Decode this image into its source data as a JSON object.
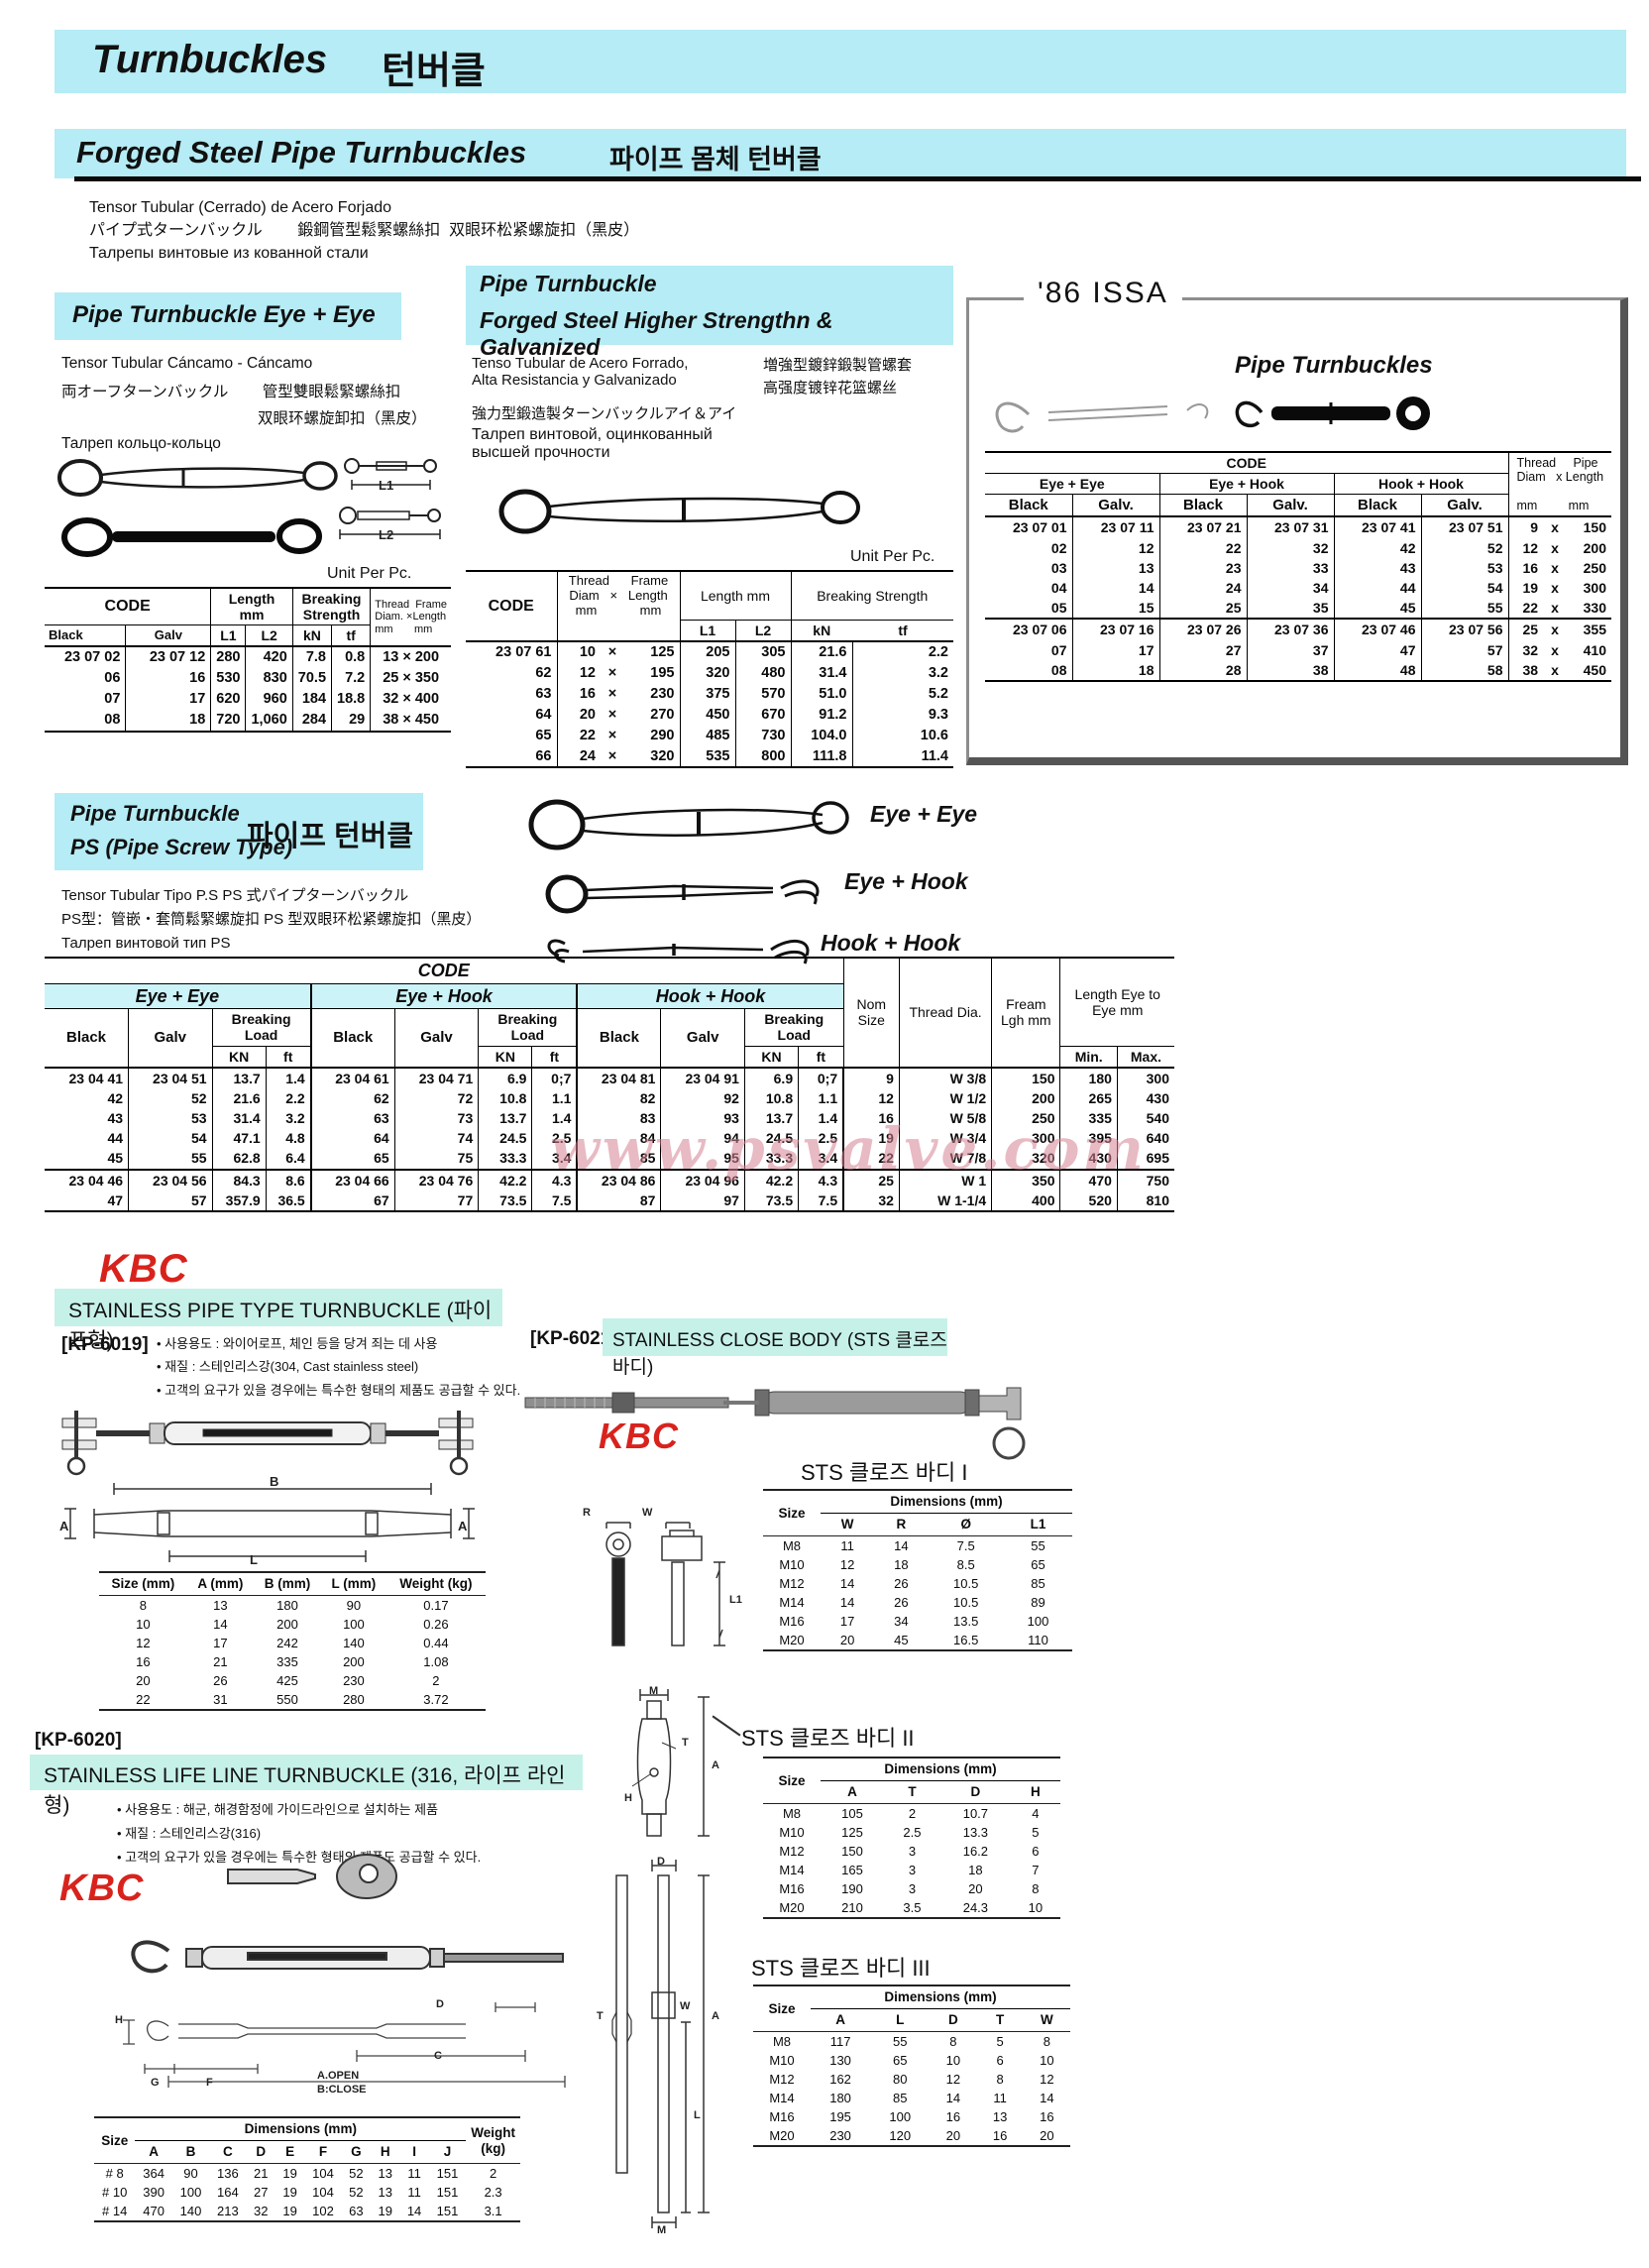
{
  "page": {
    "title_en": "Turnbuckles",
    "title_kr": "턴버클",
    "section_en": "Forged Steel Pipe Turnbuckles",
    "section_kr": "파이프 몸체 턴버클",
    "intro1": "Tensor Tubular (Cerrado) de Acero Forjado",
    "intro2": "パイプ式ターンバックル        鍛鋼管型鬆緊螺絲扣  双眼环松紧螺旋扣（黑皮）",
    "intro3": "Талрепы винтовые из кованной стали",
    "watermark": "www.psvalve.com",
    "accent_cyan": "#b5ecf5",
    "kbc_red": "#d8231d"
  },
  "labels": {
    "code": "CODE",
    "black": "Black",
    "galv": "Galv",
    "galv_dot": "Galv.",
    "l1": "L1",
    "l2": "L2",
    "kn": "kN",
    "kn_u": "KN",
    "tf": "tf",
    "ft": "ft",
    "unit_per_pc": "Unit Per Pc.",
    "length_mm": "Length mm",
    "breaking_strength": "Breaking Strength",
    "breaking_load": "Breaking Load",
    "eye_eye": "Eye + Eye",
    "eye_hook": "Eye + Hook",
    "hook_hook": "Hook + Hook",
    "size": "Size",
    "dimensions_mm": "Dimensions (mm)",
    "weight_kg": "Weight (kg)",
    "nom_size": "Nom Size",
    "thread_dia": "Thread Dia.",
    "fream_lgh": "Fream Lgh mm",
    "length_eye": "Length Eye to Eye mm",
    "min": "Min.",
    "max": "Max.",
    "thread_frame_1": "Thread  Frame",
    "thread_frame_2": "Diam. ×Length",
    "thread_frame_3": "mm       mm",
    "thread_pipe_1": "Thread     Pipe",
    "thread_pipe_2": "Diam   x Length",
    "thread_pipe_3": "mm         mm",
    "t2_thread_1": "Thread      Frame",
    "t2_thread_2": "Diam   ×   Length",
    "t2_thread_3": "mm            mm"
  },
  "eye_eye_sec": {
    "heading": "Pipe Turnbuckle  Eye + Eye",
    "desc1": "Tensor Tubular Cáncamo - Cáncamo",
    "desc2": "両オーフターンバックル        管型雙眼鬆緊螺絲扣",
    "desc3": "双眼环螺旋卸扣（黑皮）",
    "desc4": "Талреп кольцо-кольцо",
    "rows": [
      [
        "23 07 02",
        "23 07 12",
        "280",
        "420",
        "7.8",
        "0.8",
        "13 × 200"
      ],
      [
        "06",
        "16",
        "530",
        "830",
        "70.5",
        "7.2",
        "25 × 350"
      ],
      [
        "07",
        "17",
        "620",
        "960",
        "184",
        "18.8",
        "32 × 400"
      ],
      [
        "08",
        "18",
        "720",
        "1,060",
        "284",
        "29",
        "38 × 450"
      ]
    ]
  },
  "hs_sec": {
    "heading1": "Pipe Turnbuckle",
    "heading2": "Forged Steel Higher Strengthn & Galvanized",
    "desc1": "Tenso Tubular de Acero Forrado,",
    "desc2": "Alta Resistancia y Galvanizado",
    "desc3": "増強型鍍鋅鍛製管螺套",
    "desc4": "高强度镀锌花篮螺丝",
    "desc5": "強力型鍛造製ターンバックルアイ＆アイ",
    "desc6": "Талреп винтовой, оцинкованный",
    "desc7": "высшей прочности",
    "rows": [
      [
        "23 07 61",
        "10",
        "×",
        "125",
        "205",
        "305",
        "21.6",
        "2.2"
      ],
      [
        "62",
        "12",
        "×",
        "195",
        "320",
        "480",
        "31.4",
        "3.2"
      ],
      [
        "63",
        "16",
        "×",
        "230",
        "375",
        "570",
        "51.0",
        "5.2"
      ],
      [
        "64",
        "20",
        "×",
        "270",
        "450",
        "670",
        "91.2",
        "9.3"
      ],
      [
        "65",
        "22",
        "×",
        "290",
        "485",
        "730",
        "104.0",
        "10.6"
      ],
      [
        "66",
        "24",
        "×",
        "320",
        "535",
        "800",
        "111.8",
        "11.4"
      ]
    ]
  },
  "issa": {
    "tag": "'86 ISSA",
    "heading": "Pipe Turnbuckles",
    "rows1": [
      [
        "23 07 01",
        "23 07 11",
        "23 07 21",
        "23 07 31",
        "23 07 41",
        "23 07 51",
        "9",
        "x",
        "150"
      ],
      [
        "02",
        "12",
        "22",
        "32",
        "42",
        "52",
        "12",
        "x",
        "200"
      ],
      [
        "03",
        "13",
        "23",
        "33",
        "43",
        "53",
        "16",
        "x",
        "250"
      ],
      [
        "04",
        "14",
        "24",
        "34",
        "44",
        "54",
        "19",
        "x",
        "300"
      ],
      [
        "05",
        "15",
        "25",
        "35",
        "45",
        "55",
        "22",
        "x",
        "330"
      ]
    ],
    "rows2": [
      [
        "23 07 06",
        "23 07 16",
        "23 07 26",
        "23 07 36",
        "23 07 46",
        "23 07 56",
        "25",
        "x",
        "355"
      ],
      [
        "07",
        "17",
        "27",
        "37",
        "47",
        "57",
        "32",
        "x",
        "410"
      ],
      [
        "08",
        "18",
        "28",
        "38",
        "48",
        "58",
        "38",
        "x",
        "450"
      ]
    ]
  },
  "ps_sec": {
    "heading1": "Pipe Turnbuckle",
    "heading2": "PS (Pipe Screw Type)",
    "heading_kr": "파이프 턴버클",
    "desc1": "Tensor Tubular Tipo P.S   PS 式パイプターンバックル",
    "desc2": "PS型：管嵌・套筒鬆緊螺旋扣  PS 型双眼环松紧螺旋扣（黑皮）",
    "desc3": "Талреп винтовой тип PS",
    "rows1": [
      [
        "23 04 41",
        "23 04 51",
        "13.7",
        "1.4",
        "23 04 61",
        "23 04 71",
        "6.9",
        "0;7",
        "23 04 81",
        "23 04 91",
        "6.9",
        "0;7",
        "9",
        "W 3/8",
        "150",
        "180",
        "300"
      ],
      [
        "42",
        "52",
        "21.6",
        "2.2",
        "62",
        "72",
        "10.8",
        "1.1",
        "82",
        "92",
        "10.8",
        "1.1",
        "12",
        "W 1/2",
        "200",
        "265",
        "430"
      ],
      [
        "43",
        "53",
        "31.4",
        "3.2",
        "63",
        "73",
        "13.7",
        "1.4",
        "83",
        "93",
        "13.7",
        "1.4",
        "16",
        "W 5/8",
        "250",
        "335",
        "540"
      ],
      [
        "44",
        "54",
        "47.1",
        "4.8",
        "64",
        "74",
        "24.5",
        "2.5",
        "84",
        "94",
        "24.5",
        "2.5",
        "19",
        "W 3/4",
        "300",
        "395",
        "640"
      ],
      [
        "45",
        "55",
        "62.8",
        "6.4",
        "65",
        "75",
        "33.3",
        "3.4",
        "85",
        "95",
        "33.3",
        "3.4",
        "22",
        "W 7/8",
        "320",
        "430",
        "695"
      ]
    ],
    "rows2": [
      [
        "23 04 46",
        "23 04 56",
        "84.3",
        "8.6",
        "23 04 66",
        "23 04 76",
        "42.2",
        "4.3",
        "23 04 86",
        "23 04 96",
        "42.2",
        "4.3",
        "25",
        "W 1",
        "350",
        "470",
        "750"
      ],
      [
        "47",
        "57",
        "357.9",
        "36.5",
        "67",
        "77",
        "73.5",
        "7.5",
        "87",
        "97",
        "73.5",
        "7.5",
        "32",
        "W 1-1/4",
        "400",
        "520",
        "810"
      ]
    ]
  },
  "kp6019": {
    "brand": "KBC",
    "heading": "STAINLESS PIPE TYPE TURNBUCKLE (파이프형)",
    "model": "[KP-6019]",
    "bullet1": "• 사용용도 : 와이어로프, 체인 등을 당겨 죄는 데 사용",
    "bullet2": "• 재질 : 스테인리스강(304, Cast stainless steel)",
    "bullet3": "• 고객의 요구가 있을 경우에는 특수한 형태의 제품도 공급할 수 있다.",
    "h": [
      "Size (mm)",
      "A (mm)",
      "B (mm)",
      "L (mm)",
      "Weight (kg)"
    ],
    "rows": [
      [
        "8",
        "13",
        "180",
        "90",
        "0.17"
      ],
      [
        "10",
        "14",
        "200",
        "100",
        "0.26"
      ],
      [
        "12",
        "17",
        "242",
        "140",
        "0.44"
      ],
      [
        "16",
        "21",
        "335",
        "200",
        "1.08"
      ],
      [
        "20",
        "26",
        "425",
        "230",
        "2"
      ],
      [
        "22",
        "31",
        "550",
        "280",
        "3.72"
      ]
    ]
  },
  "kp6020": {
    "model": "[KP-6020]",
    "heading": "STAINLESS LIFE LINE TURNBUCKLE (316, 라이프 라인형)",
    "brand": "KBC",
    "bullet1": "• 사용용도 : 해군, 해경함정에 가이드라인으로 설치하는 제품",
    "bullet2": "• 재질 : 스테인리스강(316)",
    "bullet3": "• 고객의 요구가 있을 경우에는 특수한 형태의 제품도 공급할 수 있다.",
    "dim_h": [
      "A",
      "B",
      "C",
      "D",
      "E",
      "F",
      "G",
      "H",
      "I",
      "J"
    ],
    "rows": [
      [
        "# 8",
        "364",
        "90",
        "136",
        "21",
        "19",
        "104",
        "52",
        "13",
        "11",
        "151",
        "2"
      ],
      [
        "# 10",
        "390",
        "100",
        "164",
        "27",
        "19",
        "104",
        "52",
        "13",
        "11",
        "151",
        "2.3"
      ],
      [
        "# 14",
        "470",
        "140",
        "213",
        "32",
        "19",
        "102",
        "63",
        "19",
        "14",
        "151",
        "3.1"
      ]
    ]
  },
  "kp6021": {
    "model": "[KP-6021]",
    "heading": "STAINLESS CLOSE BODY (STS 클로즈 바디)",
    "brand": "KBC",
    "t1_title": "STS 클로즈 바디 I",
    "t1_h": [
      "W",
      "R",
      "Ø",
      "L1"
    ],
    "t1_rows": [
      [
        "M8",
        "11",
        "14",
        "7.5",
        "55"
      ],
      [
        "M10",
        "12",
        "18",
        "8.5",
        "65"
      ],
      [
        "M12",
        "14",
        "26",
        "10.5",
        "85"
      ],
      [
        "M14",
        "14",
        "26",
        "10.5",
        "89"
      ],
      [
        "M16",
        "17",
        "34",
        "13.5",
        "100"
      ],
      [
        "M20",
        "20",
        "45",
        "16.5",
        "110"
      ]
    ],
    "t2_title": "STS 클로즈 바디 II",
    "t2_h": [
      "A",
      "T",
      "D",
      "H"
    ],
    "t2_rows": [
      [
        "M8",
        "105",
        "2",
        "10.7",
        "4"
      ],
      [
        "M10",
        "125",
        "2.5",
        "13.3",
        "5"
      ],
      [
        "M12",
        "150",
        "3",
        "16.2",
        "6"
      ],
      [
        "M14",
        "165",
        "3",
        "18",
        "7"
      ],
      [
        "M16",
        "190",
        "3",
        "20",
        "8"
      ],
      [
        "M20",
        "210",
        "3.5",
        "24.3",
        "10"
      ]
    ],
    "t3_title": "STS 클로즈 바디 III",
    "t3_h": [
      "A",
      "L",
      "D",
      "T",
      "W"
    ],
    "t3_rows": [
      [
        "M8",
        "117",
        "55",
        "8",
        "5",
        "8"
      ],
      [
        "M10",
        "130",
        "65",
        "10",
        "6",
        "10"
      ],
      [
        "M12",
        "162",
        "80",
        "12",
        "8",
        "12"
      ],
      [
        "M14",
        "180",
        "85",
        "14",
        "11",
        "14"
      ],
      [
        "M16",
        "195",
        "100",
        "16",
        "13",
        "16"
      ],
      [
        "M20",
        "230",
        "120",
        "20",
        "16",
        "20"
      ]
    ]
  },
  "diagram_labels": {
    "l1": "L1",
    "l2": "L2",
    "b": "B",
    "a": "A",
    "l": "L",
    "c": "C",
    "d": "D",
    "t": "T",
    "h": "H",
    "m": "M",
    "w": "W",
    "r": "R",
    "g": "G",
    "f": "F",
    "a_open": "A.OPEN",
    "b_close": "B:CLOSE"
  }
}
